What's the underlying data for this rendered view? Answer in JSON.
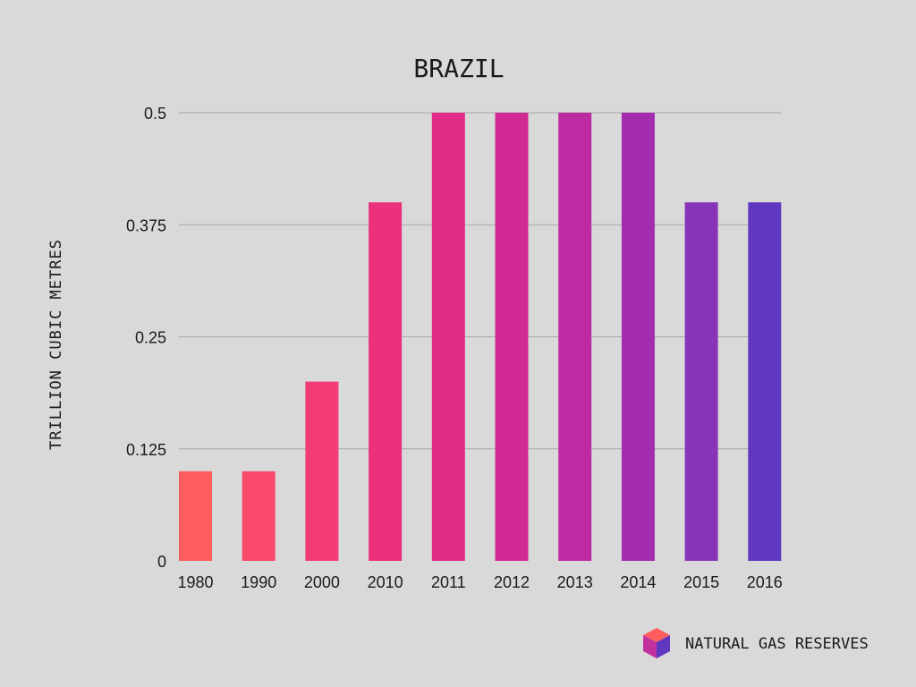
{
  "chart_data": {
    "type": "bar",
    "title": "BRAZIL",
    "xlabel": "",
    "ylabel": "TRILLION CUBIC METRES",
    "categories": [
      "1980",
      "1990",
      "2000",
      "2010",
      "2011",
      "2012",
      "2013",
      "2014",
      "2015",
      "2016"
    ],
    "values": [
      0.1,
      0.1,
      0.2,
      0.4,
      0.5,
      0.5,
      0.5,
      0.5,
      0.4,
      0.4
    ],
    "ylim": [
      0,
      0.5
    ],
    "yticks": [
      0,
      0.125,
      0.25,
      0.375,
      0.5
    ],
    "ytick_labels": [
      "0",
      "0.125",
      "0.25",
      "0.375",
      "0.5"
    ],
    "grid": true,
    "legend": "none",
    "bar_colors": [
      "#fe5d5e",
      "#f9496c",
      "#f33c73",
      "#ec307c",
      "#e12b87",
      "#d22a94",
      "#bd2ba2",
      "#a42cae",
      "#8834b8",
      "#6038c0"
    ]
  },
  "brand": {
    "label": "NATURAL GAS RESERVES",
    "logo_icon": "cube-icon",
    "logo_colors": [
      "#fe5d5e",
      "#c2329e",
      "#6038c0"
    ]
  }
}
